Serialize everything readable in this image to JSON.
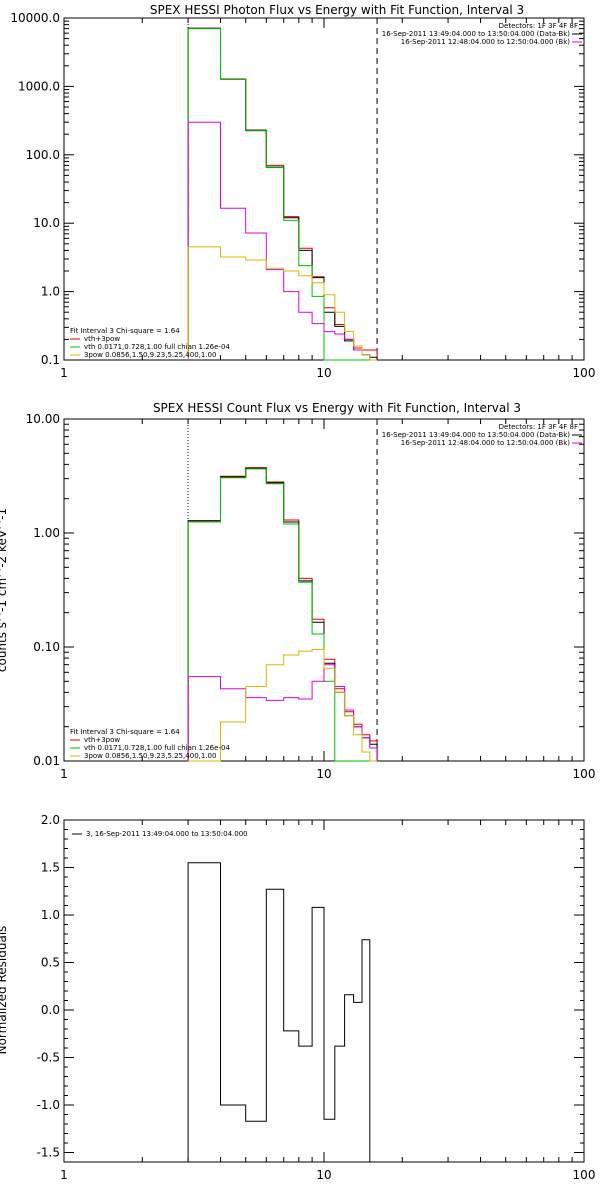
{
  "chart_data": [
    {
      "type": "line",
      "title": "SPEX HESSI Photon Flux vs Energy with Fit Function, Interval 3",
      "xlog": true,
      "ylog": true,
      "xlim": [
        1,
        100
      ],
      "ylim": [
        0.1,
        10000
      ],
      "xticks": [
        1,
        10,
        100
      ],
      "xticklabels": [
        "1",
        "10",
        "100"
      ],
      "yticks": [
        0.1,
        1,
        10,
        100,
        1000,
        10000
      ],
      "yticklabels": [
        "0.1",
        "1.0",
        "10.0",
        "100.0",
        "1000.0",
        "10000.0"
      ],
      "vlines": [
        {
          "x": 3,
          "style": "dotted",
          "color": "#000000"
        },
        {
          "x": 16,
          "style": "dashed",
          "color": "#000000"
        }
      ],
      "bin_edges": [
        3,
        4,
        5,
        6,
        7,
        8,
        9,
        10,
        11,
        12,
        13,
        14,
        15,
        16
      ],
      "series": [
        {
          "name": "vth+3pow",
          "color": "#e00000",
          "values": [
            7100,
            1280,
            230,
            70,
            12.5,
            4.3,
            1.65,
            0.58,
            0.33,
            0.2,
            0.15,
            0.14,
            0.14
          ]
        },
        {
          "name": "",
          "color": "#000000",
          "values": [
            7100,
            1270,
            228,
            66,
            12,
            4.0,
            1.6,
            0.5,
            0.31,
            0.19,
            0.14,
            0.12,
            0.11
          ]
        },
        {
          "name": "vth 0.0171,0.728,1.00  full chian 1.26e-04",
          "color": "#00c000",
          "values": [
            7000,
            1260,
            225,
            65,
            11,
            2.4,
            0.85,
            0.1,
            0.1,
            0.1,
            0.1,
            0.1,
            0.1
          ]
        },
        {
          "name": "",
          "color": "#e000e0",
          "values": [
            300,
            16.5,
            7.2,
            2.1,
            1.0,
            0.5,
            0.34,
            0.26,
            0.24,
            0.2,
            0.14,
            0.12,
            0.1
          ]
        },
        {
          "name": "3pow 0.0856,1.50,9.23,5.25,400,1.00",
          "color": "#d8b800",
          "values": [
            4.5,
            3.2,
            2.9,
            2.2,
            2.0,
            1.7,
            1.35,
            0.9,
            0.5,
            0.26,
            0.16,
            0.12,
            0.1
          ]
        }
      ],
      "legend": {
        "header": [
          "Detectors: 1F 3F 4F 8F",
          "16-Sep-2011 13:49:04.000 to 13:50:04.000 (Data-Bk)",
          "16-Sep-2011 12:48:04.000 to 12:50:04.000 (Bk)"
        ],
        "placement": "top-right"
      },
      "annotation": {
        "fit_label": "Fit Interval 3    Chi-square = 1.64",
        "placement": "bottom-left"
      }
    },
    {
      "type": "line",
      "title": "SPEX HESSI Count Flux vs Energy with Fit Function, Interval 3",
      "ylabel": "counts s^-1 cm^-2 keV^-1",
      "xlog": true,
      "ylog": true,
      "xlim": [
        1,
        100
      ],
      "ylim": [
        0.01,
        10
      ],
      "xticks": [
        1,
        10,
        100
      ],
      "xticklabels": [
        "1",
        "10",
        "100"
      ],
      "yticks": [
        0.01,
        0.1,
        1,
        10
      ],
      "yticklabels": [
        "0.01",
        "0.10",
        "1.00",
        "10.00"
      ],
      "vlines": [
        {
          "x": 3,
          "style": "dotted",
          "color": "#000000"
        },
        {
          "x": 16,
          "style": "dashed",
          "color": "#000000"
        }
      ],
      "bin_edges": [
        3,
        4,
        5,
        6,
        7,
        8,
        9,
        10,
        11,
        12,
        13,
        14,
        15,
        16
      ],
      "series": [
        {
          "name": "vth+3pow",
          "color": "#e00000",
          "values": [
            1.28,
            3.15,
            3.75,
            2.8,
            1.3,
            0.4,
            0.175,
            0.078,
            0.043,
            0.027,
            0.021,
            0.017,
            0.015
          ]
        },
        {
          "name": "",
          "color": "#000000",
          "values": [
            1.28,
            3.1,
            3.7,
            2.75,
            1.25,
            0.38,
            0.165,
            0.072,
            0.04,
            0.025,
            0.02,
            0.016,
            0.014
          ]
        },
        {
          "name": "vth 0.0171,0.728,1.00  full chian 1.26e-04",
          "color": "#00c000",
          "values": [
            1.25,
            3.05,
            3.65,
            2.7,
            1.2,
            0.37,
            0.13,
            0.05,
            0.01,
            0.01,
            0.01,
            0.01,
            0.01
          ]
        },
        {
          "name": "",
          "color": "#e000e0",
          "values": [
            0.055,
            0.043,
            0.036,
            0.034,
            0.036,
            0.035,
            0.05,
            0.07,
            0.045,
            0.028,
            0.02,
            0.016,
            0.013
          ]
        },
        {
          "name": "3pow 0.0856,1.50,9.23,5.25,400,1.00",
          "color": "#d8b800",
          "values": [
            0.01,
            0.022,
            0.045,
            0.07,
            0.085,
            0.092,
            0.095,
            0.065,
            0.04,
            0.025,
            0.017,
            0.012,
            0.01
          ]
        }
      ],
      "legend": {
        "header": [
          "Detectors: 1F 3F 4F 8F",
          "16-Sep-2011 13:49:04.000 to 13:50:04.000 (Data-Bk)",
          "16-Sep-2011 12:48:04.000 to 12:50:04.000 (Bk)"
        ],
        "placement": "top-right"
      },
      "annotation": {
        "fit_label": "Fit Interval 3    Chi-square = 1.64",
        "placement": "bottom-left"
      }
    },
    {
      "type": "line",
      "ylabel": "Normalized Residuals",
      "xlog": true,
      "xlim": [
        1,
        100
      ],
      "ylim": [
        -1.6,
        2.0
      ],
      "xticks": [
        1,
        10,
        100
      ],
      "xticklabels": [
        "1",
        "10",
        "100"
      ],
      "yticks": [
        -1.5,
        -1.0,
        -0.5,
        0.0,
        0.5,
        1.0,
        1.5,
        2.0
      ],
      "yticklabels": [
        "-1.5",
        "-1.0",
        "-0.5",
        "0.0",
        "0.5",
        "1.0",
        "1.5",
        "2.0"
      ],
      "bin_edges": [
        3,
        4,
        5,
        6,
        7,
        8,
        9,
        10,
        11,
        12,
        13,
        14,
        15,
        16
      ],
      "series": [
        {
          "name": "3, 16-Sep-2011 13:49:04.000 to 13:50:04.000",
          "color": "#000000",
          "values": [
            1.55,
            -1.0,
            -1.17,
            1.27,
            -0.22,
            -0.38,
            1.08,
            -1.15,
            -0.38,
            0.16,
            0.08,
            0.74,
            -1.6
          ]
        }
      ],
      "legend": {
        "placement": "top-left"
      }
    }
  ],
  "legend_labels": {
    "total": "vth+3pow",
    "thermal": "vth 0.0171,0.728,1.00  full chian 1.26e-04",
    "powerlaw": "3pow 0.0856,1.50,9.23,5.25,400,1.00"
  }
}
